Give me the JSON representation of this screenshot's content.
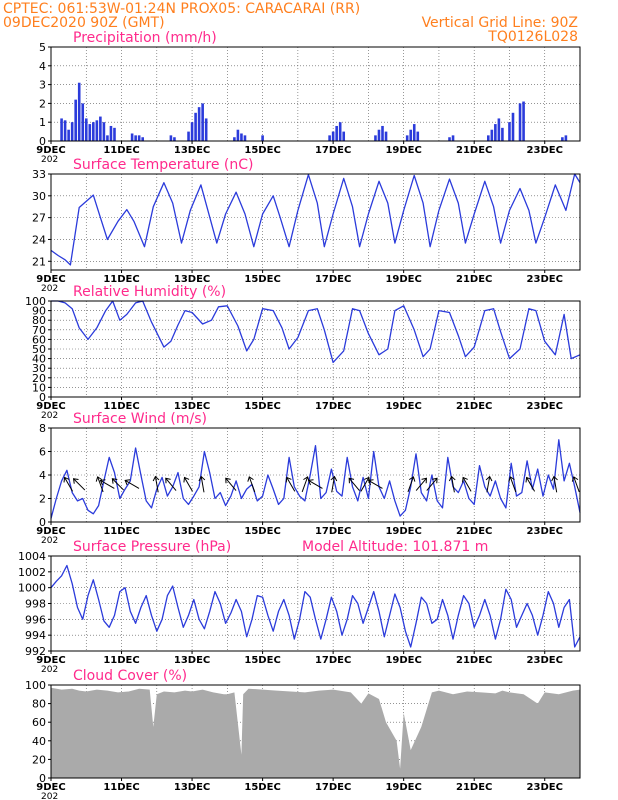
{
  "header": {
    "line1": "CPTEC:   061:53W-01:24N   PROX05: CARACARAI (RR)",
    "line2": "09DEC2020 90Z (GMT)",
    "grid_note": "Vertical Grid Line: 90Z",
    "code": "TQ0126L028",
    "color": "#ff7f1e"
  },
  "colors": {
    "title": "#ff2a8c",
    "line": "#2b3bdb",
    "bars": "#2b3bdb",
    "cloud": "#aaaaaa",
    "grid": "#555555"
  },
  "x_axis": {
    "start_day": 9,
    "days": 15,
    "ticks": [
      "9DEC",
      "11DEC",
      "13DEC",
      "15DEC",
      "17DEC",
      "19DEC",
      "21DEC",
      "23DEC"
    ],
    "partial_label": "202"
  },
  "chart_data": [
    {
      "type": "bar",
      "title": "Precipitation (mm/h)",
      "ylim": [
        0,
        5
      ],
      "yticks": [
        "0",
        "1",
        "2",
        "3",
        "4",
        "5"
      ],
      "x_day": [
        9.3,
        9.4,
        9.5,
        9.6,
        9.7,
        9.8,
        9.9,
        10.0,
        10.1,
        10.2,
        10.3,
        10.4,
        10.5,
        10.6,
        10.7,
        10.8,
        11.3,
        11.4,
        11.5,
        11.6,
        12.4,
        12.5,
        12.9,
        13.0,
        13.1,
        13.2,
        13.3,
        13.4,
        14.2,
        14.3,
        14.4,
        14.5,
        15.0,
        16.9,
        17.0,
        17.1,
        17.2,
        17.3,
        18.2,
        18.3,
        18.4,
        18.5,
        19.1,
        19.2,
        19.3,
        19.4,
        20.3,
        20.4,
        21.4,
        21.5,
        21.6,
        21.7,
        21.8,
        22.0,
        22.1,
        22.3,
        22.4,
        23.5,
        23.6
      ],
      "values": [
        1.2,
        1.1,
        0.6,
        1.0,
        2.2,
        3.1,
        2.0,
        1.2,
        0.9,
        1.0,
        1.1,
        1.3,
        1.0,
        0.3,
        0.8,
        0.7,
        0.4,
        0.3,
        0.3,
        0.2,
        0.3,
        0.2,
        0.5,
        1.0,
        1.5,
        1.8,
        2.0,
        1.2,
        0.2,
        0.6,
        0.4,
        0.3,
        0.3,
        0.3,
        0.5,
        0.8,
        1.0,
        0.5,
        0.3,
        0.6,
        0.8,
        0.5,
        0.3,
        0.6,
        0.9,
        0.5,
        0.2,
        0.3,
        0.3,
        0.6,
        0.9,
        1.2,
        0.7,
        1.0,
        1.5,
        2.0,
        2.1,
        0.2,
        0.3
      ]
    },
    {
      "type": "line",
      "title": "Surface Temperature (nC)",
      "ylim": [
        19.8,
        33
      ],
      "yticks": [
        "21",
        "24",
        "27",
        "30",
        "33"
      ],
      "x_day": [
        9.0,
        9.2,
        9.4,
        9.55,
        9.8,
        10.2,
        10.4,
        10.6,
        10.9,
        11.15,
        11.35,
        11.65,
        11.9,
        12.2,
        12.45,
        12.7,
        12.95,
        13.25,
        13.45,
        13.7,
        13.95,
        14.25,
        14.5,
        14.75,
        15.0,
        15.3,
        15.5,
        15.75,
        16.0,
        16.3,
        16.55,
        16.75,
        17.0,
        17.3,
        17.55,
        17.75,
        18.0,
        18.3,
        18.55,
        18.75,
        19.0,
        19.3,
        19.55,
        19.75,
        20.0,
        20.3,
        20.55,
        20.75,
        21.0,
        21.3,
        21.55,
        21.75,
        22.0,
        22.3,
        22.55,
        22.75,
        23.0,
        23.3,
        23.6,
        23.85,
        24.0
      ],
      "values": [
        22.5,
        21.8,
        21.2,
        20.5,
        28.4,
        30.1,
        27.0,
        24.0,
        26.5,
        28.1,
        26.5,
        23.0,
        28.5,
        31.8,
        29.0,
        23.5,
        28.0,
        31.5,
        28.0,
        23.5,
        27.5,
        30.5,
        27.5,
        23.0,
        27.5,
        30.0,
        27.0,
        23.0,
        28.0,
        32.9,
        29.0,
        23.0,
        27.5,
        32.4,
        28.5,
        23.0,
        27.5,
        32.0,
        29.0,
        23.5,
        28.0,
        32.8,
        29.0,
        23.0,
        28.0,
        32.3,
        29.0,
        23.5,
        27.5,
        32.0,
        28.5,
        23.5,
        28.0,
        31.0,
        28.0,
        23.5,
        27.0,
        31.5,
        28.0,
        33.0,
        31.8
      ]
    },
    {
      "type": "line",
      "title": "Relative Humidity (%)",
      "ylim": [
        0,
        100
      ],
      "yticks": [
        "0",
        "10",
        "20",
        "30",
        "40",
        "50",
        "60",
        "70",
        "80",
        "90",
        "100"
      ],
      "x_day": [
        9.0,
        9.2,
        9.4,
        9.6,
        9.8,
        10.05,
        10.3,
        10.55,
        10.75,
        10.95,
        11.15,
        11.4,
        11.6,
        11.85,
        12.2,
        12.4,
        12.6,
        12.8,
        13.0,
        13.3,
        13.55,
        13.75,
        14.0,
        14.3,
        14.55,
        14.75,
        15.0,
        15.3,
        15.55,
        15.75,
        16.0,
        16.3,
        16.55,
        16.75,
        17.0,
        17.3,
        17.55,
        17.75,
        18.0,
        18.3,
        18.55,
        18.75,
        19.0,
        19.3,
        19.55,
        19.75,
        20.0,
        20.3,
        20.55,
        20.75,
        21.0,
        21.3,
        21.55,
        21.75,
        22.0,
        22.3,
        22.55,
        22.75,
        23.0,
        23.3,
        23.55,
        23.75,
        24.0
      ],
      "values": [
        100,
        100,
        98,
        92,
        72,
        60,
        72,
        90,
        100,
        80,
        86,
        98,
        100,
        78,
        52,
        58,
        75,
        90,
        88,
        76,
        80,
        94,
        95,
        74,
        48,
        60,
        92,
        90,
        72,
        50,
        62,
        90,
        92,
        70,
        36,
        48,
        92,
        90,
        66,
        44,
        50,
        90,
        95,
        70,
        42,
        50,
        90,
        88,
        64,
        42,
        52,
        90,
        92,
        68,
        40,
        50,
        92,
        90,
        58,
        44,
        86,
        40,
        44
      ]
    },
    {
      "type": "line",
      "title": "Surface Wind (m/s)",
      "ylim": [
        0,
        8
      ],
      "yticks": [
        "0",
        "2",
        "4",
        "6",
        "8"
      ],
      "x_day": [
        9.0,
        9.15,
        9.3,
        9.45,
        9.6,
        9.75,
        9.9,
        10.05,
        10.2,
        10.35,
        10.5,
        10.65,
        10.8,
        10.95,
        11.1,
        11.25,
        11.4,
        11.55,
        11.7,
        11.85,
        12.0,
        12.15,
        12.3,
        12.45,
        12.6,
        12.75,
        12.9,
        13.05,
        13.2,
        13.35,
        13.5,
        13.65,
        13.8,
        13.95,
        14.1,
        14.25,
        14.4,
        14.55,
        14.7,
        14.85,
        15.0,
        15.15,
        15.3,
        15.45,
        15.6,
        15.75,
        15.9,
        16.05,
        16.2,
        16.35,
        16.5,
        16.65,
        16.8,
        16.95,
        17.1,
        17.25,
        17.4,
        17.55,
        17.7,
        17.85,
        18.0,
        18.15,
        18.3,
        18.45,
        18.6,
        18.75,
        18.9,
        19.05,
        19.2,
        19.35,
        19.5,
        19.65,
        19.8,
        19.95,
        20.1,
        20.25,
        20.4,
        20.55,
        20.7,
        20.85,
        21.0,
        21.15,
        21.3,
        21.45,
        21.6,
        21.75,
        21.9,
        22.05,
        22.2,
        22.35,
        22.5,
        22.65,
        22.8,
        22.95,
        23.1,
        23.25,
        23.4,
        23.55,
        23.7,
        23.85,
        24.0
      ],
      "values": [
        0.3,
        2.0,
        3.5,
        4.4,
        2.5,
        1.8,
        2.0,
        1.0,
        0.7,
        1.4,
        3.5,
        5.5,
        4.2,
        2.0,
        2.8,
        3.5,
        6.3,
        4.0,
        1.8,
        1.2,
        2.8,
        3.8,
        2.2,
        3.0,
        4.2,
        2.0,
        1.5,
        2.2,
        3.0,
        6.0,
        4.2,
        2.0,
        2.5,
        1.4,
        2.2,
        3.5,
        2.0,
        2.8,
        3.2,
        1.8,
        2.2,
        4.0,
        2.8,
        1.5,
        2.0,
        5.5,
        3.0,
        2.2,
        1.8,
        4.0,
        6.5,
        2.0,
        2.5,
        4.5,
        2.6,
        2.2,
        5.5,
        3.0,
        1.8,
        3.8,
        2.0,
        6.0,
        3.0,
        2.0,
        3.5,
        1.8,
        0.5,
        1.0,
        3.0,
        5.8,
        2.5,
        1.8,
        4.0,
        1.8,
        1.2,
        5.5,
        3.0,
        2.5,
        3.5,
        2.0,
        1.5,
        4.8,
        3.0,
        2.2,
        3.5,
        2.0,
        1.2,
        5.0,
        2.2,
        2.5,
        5.2,
        2.8,
        4.5,
        2.2,
        4.0,
        2.8,
        7.0,
        3.5,
        5.0,
        3.0,
        0.8
      ]
    },
    {
      "type": "line",
      "title": "Surface Pressure (hPa)",
      "annotation": "Model Altitude: 101.871 m",
      "ylim": [
        992,
        1004
      ],
      "yticks": [
        "992",
        "994",
        "996",
        "998",
        "1000",
        "1002",
        "1004"
      ],
      "x_day": [
        9.0,
        9.15,
        9.3,
        9.45,
        9.6,
        9.75,
        9.9,
        10.05,
        10.2,
        10.35,
        10.5,
        10.65,
        10.8,
        10.95,
        11.1,
        11.25,
        11.4,
        11.55,
        11.7,
        11.85,
        12.0,
        12.15,
        12.3,
        12.45,
        12.6,
        12.75,
        12.9,
        13.05,
        13.2,
        13.35,
        13.5,
        13.65,
        13.8,
        13.95,
        14.1,
        14.25,
        14.4,
        14.55,
        14.7,
        14.85,
        15.0,
        15.15,
        15.3,
        15.45,
        15.6,
        15.75,
        15.9,
        16.05,
        16.2,
        16.35,
        16.5,
        16.65,
        16.8,
        16.95,
        17.1,
        17.25,
        17.4,
        17.55,
        17.7,
        17.85,
        18.0,
        18.15,
        18.3,
        18.45,
        18.6,
        18.75,
        18.9,
        19.05,
        19.2,
        19.35,
        19.5,
        19.65,
        19.8,
        19.95,
        20.1,
        20.25,
        20.4,
        20.55,
        20.7,
        20.85,
        21.0,
        21.15,
        21.3,
        21.45,
        21.6,
        21.75,
        21.9,
        22.05,
        22.2,
        22.35,
        22.5,
        22.65,
        22.8,
        22.95,
        23.1,
        23.25,
        23.4,
        23.55,
        23.7,
        23.85,
        24.0
      ],
      "values": [
        1000.0,
        1000.8,
        1001.5,
        1002.8,
        1000.5,
        997.5,
        996.0,
        999.0,
        1001.0,
        998.5,
        995.8,
        995.0,
        996.5,
        999.5,
        1000.0,
        997.0,
        995.5,
        997.5,
        999.0,
        996.5,
        994.5,
        996.0,
        999.0,
        1000.2,
        997.5,
        995.0,
        996.5,
        998.5,
        996.0,
        994.8,
        997.0,
        999.5,
        998.0,
        995.5,
        996.8,
        998.5,
        997.0,
        993.8,
        996.0,
        999.0,
        998.8,
        996.5,
        994.5,
        997.0,
        998.5,
        996.5,
        993.5,
        996.0,
        999.5,
        998.8,
        996.0,
        993.5,
        996.0,
        998.8,
        997.0,
        994.0,
        996.0,
        999.0,
        998.0,
        995.5,
        997.5,
        999.5,
        997.0,
        993.8,
        996.5,
        999.2,
        997.5,
        994.5,
        992.5,
        995.5,
        998.8,
        998.0,
        995.5,
        996.0,
        998.5,
        996.5,
        993.5,
        996.5,
        999.0,
        998.0,
        995.0,
        996.5,
        998.5,
        996.5,
        993.5,
        996.0,
        999.8,
        998.5,
        995.0,
        996.5,
        998.0,
        996.5,
        994.0,
        996.5,
        999.5,
        998.0,
        995.0,
        997.5,
        998.5,
        992.5,
        993.8
      ]
    },
    {
      "type": "area",
      "title": "Cloud Cover (%)",
      "ylim": [
        0,
        100
      ],
      "yticks": [
        "0",
        "20",
        "40",
        "60",
        "80",
        "100"
      ],
      "x_day": [
        9.0,
        9.3,
        9.6,
        9.8,
        10.0,
        10.3,
        10.6,
        10.9,
        11.2,
        11.5,
        11.8,
        11.9,
        12.0,
        12.2,
        12.5,
        12.8,
        13.0,
        13.3,
        13.6,
        13.9,
        14.0,
        14.2,
        14.4,
        14.45,
        14.6,
        15.0,
        15.4,
        15.8,
        16.2,
        16.6,
        17.0,
        17.5,
        17.8,
        18.0,
        18.3,
        18.5,
        18.8,
        18.9,
        19.0,
        19.2,
        19.5,
        19.8,
        20.0,
        20.4,
        20.8,
        21.2,
        21.6,
        21.8,
        22.0,
        22.4,
        22.8,
        23.0,
        23.4,
        23.8,
        24.0
      ],
      "values": [
        97,
        95,
        96,
        94,
        93,
        95,
        94,
        92,
        93,
        96,
        95,
        55,
        90,
        93,
        92,
        94,
        93,
        95,
        92,
        90,
        90,
        92,
        25,
        90,
        96,
        95,
        94,
        93,
        92,
        94,
        95,
        92,
        80,
        91,
        85,
        60,
        40,
        10,
        70,
        30,
        55,
        92,
        94,
        90,
        93,
        92,
        91,
        94,
        92,
        90,
        80,
        92,
        90,
        94,
        95
      ]
    }
  ],
  "wind_arrows": [
    {
      "day": 9.5,
      "dir_deg": 330
    },
    {
      "day": 9.8,
      "dir_deg": 315
    },
    {
      "day": 10.4,
      "dir_deg": 340
    },
    {
      "day": 10.6,
      "dir_deg": 300
    },
    {
      "day": 10.9,
      "dir_deg": 315
    },
    {
      "day": 11.3,
      "dir_deg": 300
    },
    {
      "day": 12.0,
      "dir_deg": 350
    },
    {
      "day": 12.4,
      "dir_deg": 320
    },
    {
      "day": 12.9,
      "dir_deg": 330
    },
    {
      "day": 13.3,
      "dir_deg": 350
    },
    {
      "day": 14.1,
      "dir_deg": 320
    },
    {
      "day": 14.7,
      "dir_deg": 340
    },
    {
      "day": 15.8,
      "dir_deg": 330
    },
    {
      "day": 16.2,
      "dir_deg": 20
    },
    {
      "day": 16.5,
      "dir_deg": 300
    },
    {
      "day": 17.0,
      "dir_deg": 10
    },
    {
      "day": 17.6,
      "dir_deg": 320
    },
    {
      "day": 17.9,
      "dir_deg": 30
    },
    {
      "day": 18.2,
      "dir_deg": 300
    },
    {
      "day": 19.2,
      "dir_deg": 20
    },
    {
      "day": 19.5,
      "dir_deg": 40
    },
    {
      "day": 19.8,
      "dir_deg": 40
    },
    {
      "day": 20.4,
      "dir_deg": 350
    },
    {
      "day": 20.8,
      "dir_deg": 330
    },
    {
      "day": 21.4,
      "dir_deg": 10
    },
    {
      "day": 22.1,
      "dir_deg": 340
    },
    {
      "day": 22.6,
      "dir_deg": 330
    },
    {
      "day": 23.3,
      "dir_deg": 350
    },
    {
      "day": 23.9,
      "dir_deg": 340
    }
  ]
}
